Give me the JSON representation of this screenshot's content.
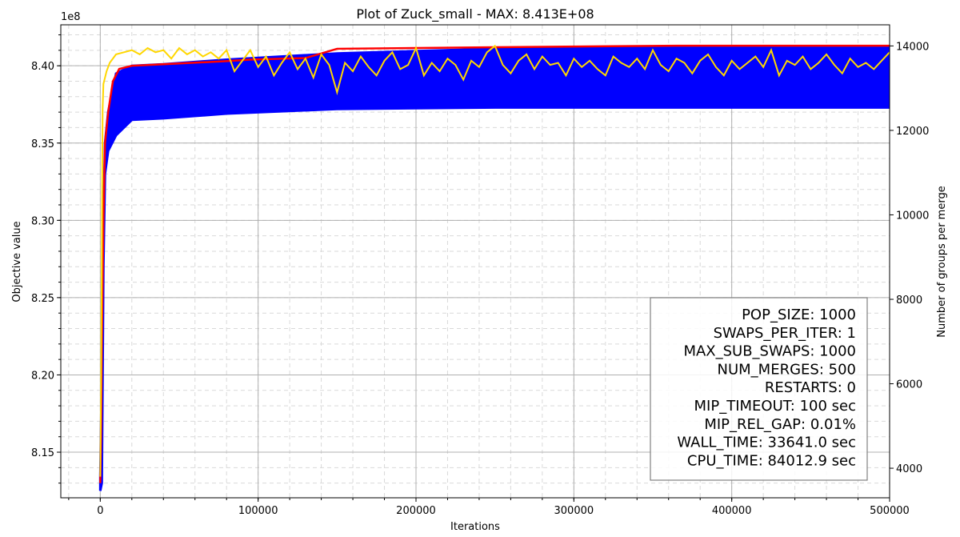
{
  "chart_data": {
    "type": "line",
    "title": "Plot of Zuck_small - MAX: 8.413E+08",
    "xlabel": "Iterations",
    "ylabel": "Objective value",
    "y2label": "Number of groups per merge",
    "offset_text": "1e8",
    "xlim": [
      -25000,
      500000
    ],
    "ylim": [
      812050000.0,
      842650000.0
    ],
    "y2lim": [
      3300,
      14500
    ],
    "x_ticks": [
      0,
      100000,
      200000,
      300000,
      400000,
      500000
    ],
    "x_tick_labels": [
      "0",
      "100000",
      "200000",
      "300000",
      "400000",
      "500000"
    ],
    "y_ticks": [
      815000000.0,
      820000000.0,
      825000000.0,
      830000000.0,
      835000000.0,
      840000000.0
    ],
    "y_tick_labels": [
      "8.15",
      "8.20",
      "8.25",
      "8.30",
      "8.35",
      "8.40"
    ],
    "y2_ticks": [
      4000,
      6000,
      8000,
      10000,
      12000,
      14000
    ],
    "y2_tick_labels": [
      "4000",
      "6000",
      "8000",
      "10000",
      "12000",
      "14000"
    ],
    "grid": true,
    "series": [
      {
        "color": "#0000ff",
        "kind": "population_band",
        "x": [
          0,
          1000,
          2000,
          3000,
          5000,
          10000,
          20000,
          40000,
          80000,
          150000,
          250000,
          350000,
          450000,
          500000
        ],
        "upper": [
          813500000.0,
          820000000.0,
          830000000.0,
          835000000.0,
          837000000.0,
          839500000.0,
          840000000.0,
          840100000.0,
          840400000.0,
          840800000.0,
          841100000.0,
          841200000.0,
          841200000.0,
          841200000.0
        ],
        "lower": [
          812500000.0,
          813000000.0,
          827000000.0,
          833000000.0,
          834500000.0,
          835500000.0,
          836500000.0,
          836600000.0,
          836900000.0,
          837200000.0,
          837300000.0,
          837300000.0,
          837300000.0,
          837300000.0
        ]
      },
      {
        "color": "#ff0000",
        "kind": "best_objective",
        "x": [
          0,
          500,
          1000,
          2000,
          3000,
          5000,
          8000,
          12000,
          20000,
          40000,
          80000,
          95000,
          130000,
          150000,
          250000,
          365000,
          500000
        ],
        "values": [
          813000000.0,
          816000000.0,
          822000000.0,
          830000000.0,
          835000000.0,
          837000000.0,
          839000000.0,
          839800000.0,
          840000000.0,
          840100000.0,
          840300000.0,
          840400000.0,
          840500000.0,
          841100000.0,
          841200000.0,
          841300000.0,
          841300000.0
        ]
      },
      {
        "color": "#ffd700",
        "kind": "groups_per_merge",
        "axis": "right",
        "x": [
          0,
          500,
          1000,
          1500,
          2000,
          4000,
          6000,
          10000,
          15000,
          20000,
          25000,
          30000,
          35000,
          40000,
          45000,
          50000,
          55000,
          60000,
          65000,
          70000,
          75000,
          80000,
          85000,
          90000,
          95000,
          100000,
          105000,
          110000,
          115000,
          120000,
          125000,
          130000,
          135000,
          140000,
          145000,
          150000,
          155000,
          160000,
          165000,
          170000,
          175000,
          180000,
          185000,
          190000,
          195000,
          200000,
          205000,
          210000,
          215000,
          220000,
          225000,
          230000,
          235000,
          240000,
          245000,
          250000,
          255000,
          260000,
          265000,
          270000,
          275000,
          280000,
          285000,
          290000,
          295000,
          300000,
          305000,
          310000,
          315000,
          320000,
          325000,
          330000,
          335000,
          340000,
          345000,
          350000,
          355000,
          360000,
          365000,
          370000,
          375000,
          380000,
          385000,
          390000,
          395000,
          400000,
          405000,
          410000,
          415000,
          420000,
          425000,
          430000,
          435000,
          440000,
          445000,
          450000,
          455000,
          460000,
          465000,
          470000,
          475000,
          480000,
          485000,
          490000,
          495000,
          500000
        ],
        "values": [
          3800,
          6000,
          9000,
          12500,
          13100,
          13400,
          13600,
          13800,
          13850,
          13900,
          13800,
          13950,
          13850,
          13900,
          13700,
          13950,
          13800,
          13900,
          13750,
          13850,
          13700,
          13900,
          13400,
          13650,
          13900,
          13500,
          13750,
          13300,
          13600,
          13850,
          13450,
          13700,
          13250,
          13800,
          13550,
          12900,
          13600,
          13400,
          13750,
          13500,
          13300,
          13650,
          13850,
          13450,
          13550,
          13950,
          13300,
          13600,
          13400,
          13700,
          13550,
          13200,
          13650,
          13500,
          13850,
          14000,
          13550,
          13350,
          13650,
          13800,
          13450,
          13750,
          13550,
          13600,
          13300,
          13700,
          13500,
          13650,
          13450,
          13300,
          13750,
          13600,
          13500,
          13700,
          13450,
          13900,
          13550,
          13400,
          13700,
          13600,
          13350,
          13650,
          13800,
          13500,
          13300,
          13650,
          13450,
          13600,
          13750,
          13500,
          13900,
          13300,
          13650,
          13550,
          13750,
          13450,
          13600,
          13800,
          13550,
          13350,
          13700,
          13500,
          13600,
          13450,
          13650,
          13850
        ]
      }
    ],
    "legend": {
      "placement": "bottom-right",
      "lines": [
        "POP_SIZE: 1000",
        "SWAPS_PER_ITER: 1",
        "MAX_SUB_SWAPS: 1000",
        "NUM_MERGES: 500",
        "RESTARTS: 0",
        "MIP_TIMEOUT: 100 sec",
        "MIP_REL_GAP: 0.01%",
        "WALL_TIME: 33641.0 sec",
        "CPU_TIME: 84012.9 sec"
      ]
    }
  }
}
